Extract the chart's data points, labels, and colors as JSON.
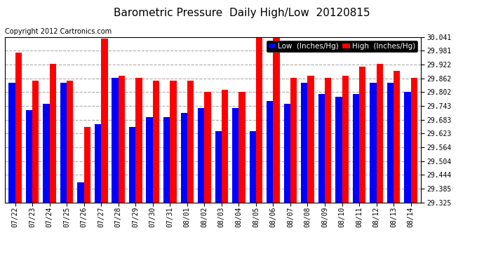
{
  "title": "Barometric Pressure  Daily High/Low  20120815",
  "copyright": "Copyright 2012 Cartronics.com",
  "legend_low": "Low  (Inches/Hg)",
  "legend_high": "High  (Inches/Hg)",
  "dates": [
    "07/22",
    "07/23",
    "07/24",
    "07/25",
    "07/26",
    "07/27",
    "07/28",
    "07/29",
    "07/30",
    "07/31",
    "08/01",
    "08/02",
    "08/03",
    "08/04",
    "08/05",
    "08/06",
    "08/07",
    "08/08",
    "08/09",
    "08/10",
    "08/11",
    "08/12",
    "08/13",
    "08/14"
  ],
  "low": [
    29.843,
    29.723,
    29.753,
    29.843,
    29.413,
    29.663,
    29.863,
    29.653,
    29.693,
    29.693,
    29.713,
    29.733,
    29.633,
    29.733,
    29.633,
    29.763,
    29.753,
    29.843,
    29.793,
    29.783,
    29.793,
    29.843,
    29.843,
    29.803
  ],
  "high": [
    29.973,
    29.853,
    29.923,
    29.853,
    29.653,
    30.033,
    29.873,
    29.863,
    29.853,
    29.853,
    29.853,
    29.803,
    29.813,
    29.803,
    30.041,
    30.041,
    29.863,
    29.873,
    29.863,
    29.873,
    29.913,
    29.923,
    29.893,
    29.863
  ],
  "ylim_min": 29.325,
  "ylim_max": 30.041,
  "yticks": [
    29.325,
    29.385,
    29.444,
    29.504,
    29.564,
    29.623,
    29.683,
    29.743,
    29.802,
    29.862,
    29.922,
    29.981,
    30.041
  ],
  "bar_width": 0.38,
  "low_color": "#0000ff",
  "high_color": "#ff0000",
  "bg_color": "#ffffff",
  "grid_color": "#aaaaaa",
  "title_fontsize": 11,
  "copyright_fontsize": 7,
  "legend_fontsize": 7.5,
  "tick_fontsize": 7,
  "title_color": "#000000",
  "copyright_color": "#000000"
}
